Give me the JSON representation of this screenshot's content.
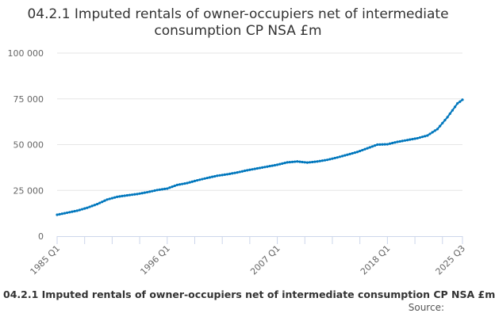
{
  "chart_data": {
    "type": "line",
    "title": "04.2.1 Imputed rentals of owner-occupiers net of intermediate consumption CP NSA £m",
    "xlabel": "",
    "ylabel": "",
    "x_start": "1985 Q1",
    "x_frequency": "quarterly",
    "x_tick_labels": [
      "1985 Q1",
      "1996 Q1",
      "2007 Q1",
      "2018 Q1",
      "2025 Q3"
    ],
    "y_tick_labels": [
      "0",
      "25 000",
      "50 000",
      "75 000",
      "100 000"
    ],
    "ylim": [
      0,
      100000
    ],
    "grid": true,
    "legend": "none",
    "color": "#0077bd",
    "series": [
      {
        "values": [
          11700,
          11975,
          12250,
          12525,
          12800,
          13075,
          13350,
          13625,
          13900,
          14300,
          14700,
          15100,
          15500,
          16000,
          16500,
          17000,
          17500,
          18125,
          18750,
          19375,
          20000,
          20375,
          20750,
          21125,
          21500,
          21700,
          21900,
          22100,
          22300,
          22475,
          22650,
          22825,
          23000,
          23250,
          23500,
          23750,
          24000,
          24300,
          24600,
          24900,
          25200,
          25400,
          25600,
          25800,
          26000,
          26500,
          27000,
          27500,
          28000,
          28250,
          28500,
          28750,
          29000,
          29375,
          29750,
          30125,
          30500,
          30825,
          31150,
          31475,
          31800,
          32100,
          32400,
          32700,
          33000,
          33200,
          33400,
          33600,
          33800,
          34050,
          34300,
          34550,
          34800,
          35100,
          35400,
          35700,
          36000,
          36250,
          36500,
          36750,
          37000,
          37250,
          37500,
          37750,
          38000,
          38250,
          38500,
          38750,
          39000,
          39325,
          39650,
          39975,
          40300,
          40425,
          40550,
          40675,
          40800,
          40650,
          40500,
          40350,
          40200,
          40350,
          40500,
          40650,
          40800,
          41025,
          41250,
          41475,
          41700,
          42025,
          42350,
          42675,
          43000,
          43375,
          43750,
          44125,
          44500,
          44875,
          45250,
          45625,
          46000,
          46500,
          47000,
          47500,
          48000,
          48500,
          49000,
          49500,
          50000,
          50050,
          50100,
          50150,
          50200,
          50525,
          50850,
          51175,
          51500,
          51750,
          52000,
          52250,
          52500,
          52750,
          53000,
          53250,
          53500,
          53875,
          54250,
          54625,
          55000,
          55875,
          56750,
          57625,
          58500,
          60125,
          61750,
          63375,
          65000,
          66875,
          68750,
          70625,
          72500,
          73500,
          74500
        ]
      }
    ]
  },
  "caption": "04.2.1 Imputed rentals of owner-occupiers net of intermediate consumption CP NSA £m",
  "source_label": "Source:"
}
